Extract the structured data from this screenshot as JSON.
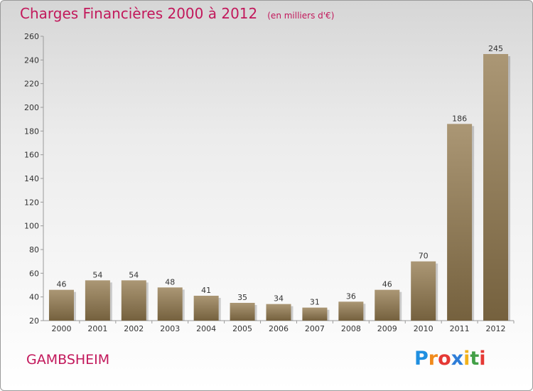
{
  "header": {
    "title": "Charges Financières 2000 à 2012",
    "subtitle": "(en milliers d'€)"
  },
  "footer": {
    "town": "GAMBSHEIM",
    "logo": "Proxiti"
  },
  "colors": {
    "title": "#c2185b",
    "bar_top": "#ab9775",
    "bar_bottom": "#75613e",
    "axis": "#9a9a9a"
  },
  "chart_data": {
    "type": "bar",
    "title": "Charges Financières 2000 à 2012",
    "subtitle": "(en milliers d'€)",
    "xlabel": "",
    "ylabel": "",
    "categories": [
      "2000",
      "2001",
      "2002",
      "2003",
      "2004",
      "2005",
      "2006",
      "2007",
      "2008",
      "2009",
      "2010",
      "2011",
      "2012"
    ],
    "values": [
      46,
      54,
      54,
      48,
      41,
      35,
      34,
      31,
      36,
      46,
      70,
      186,
      245
    ],
    "ylim": [
      20,
      260
    ],
    "yticks": [
      20,
      40,
      60,
      80,
      100,
      120,
      140,
      160,
      180,
      200,
      220,
      240,
      260
    ],
    "grid": false,
    "legend": "none"
  }
}
